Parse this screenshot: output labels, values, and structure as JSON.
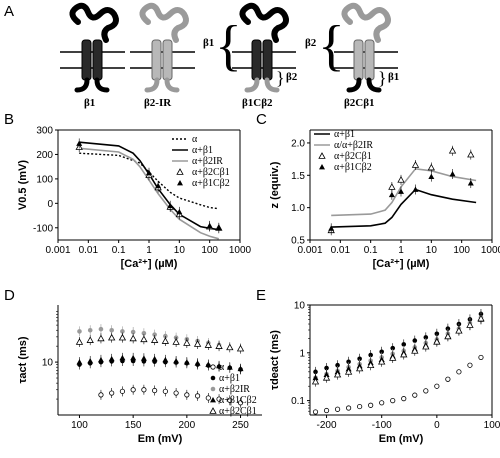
{
  "panel_labels": {
    "a": "A",
    "b": "B",
    "c": "C",
    "d": "D",
    "e": "E"
  },
  "schematic": {
    "labels": [
      "β1",
      "β2-IR",
      "β1Cβ2",
      "β2Cβ1"
    ],
    "brace_left_1": "β1",
    "brace_right_1": "β2",
    "brace_left_2": "β2",
    "brace_right_2": "β1"
  },
  "colors": {
    "black": "#000000",
    "gray": "#9a9a9a",
    "dark_subunit": "#2a2a2a",
    "light_subunit": "#b8b8b8"
  },
  "chart_data": [
    {
      "panel": "B",
      "type": "line",
      "xlabel": "[Ca²⁺] (µM)",
      "ylabel": "V0.5 (mV)",
      "xscale": "log",
      "xlim": [
        0.001,
        1000
      ],
      "ylim": [
        -150,
        300
      ],
      "xticks": [
        "0.001",
        "0.01",
        "0.1",
        "1",
        "10",
        "100",
        "1000"
      ],
      "yticks": [
        "300",
        "200",
        "100",
        "0",
        "-100"
      ],
      "legend": [
        "α",
        "α+β1",
        "α+β2IR",
        "α+β2Cβ1",
        "α+β1Cβ2"
      ],
      "legend_position": "top-right",
      "series": [
        {
          "name": "α",
          "style": "dotted",
          "x": [
            0.005,
            0.1,
            0.5,
            1,
            2,
            5,
            10,
            50,
            100,
            200
          ],
          "y": [
            205,
            196,
            165,
            128,
            90,
            45,
            22,
            -6,
            -17,
            -22
          ]
        },
        {
          "name": "α+β1",
          "style": "solid-black",
          "x": [
            0.005,
            0.1,
            0.3,
            0.5,
            1,
            2,
            5,
            10,
            50,
            100,
            200
          ],
          "y": [
            250,
            235,
            205,
            175,
            120,
            60,
            -5,
            -45,
            -95,
            -102,
            -108
          ]
        },
        {
          "name": "α+β2IR",
          "style": "solid-gray",
          "x": [
            0.005,
            0.1,
            0.3,
            0.5,
            1,
            2,
            5,
            10,
            50,
            100,
            200
          ],
          "y": [
            225,
            210,
            180,
            150,
            95,
            40,
            -25,
            -65,
            -120,
            -135,
            -145
          ]
        },
        {
          "name": "α+β2Cβ1",
          "style": "open-triangle",
          "x": [
            0.005,
            1,
            2,
            5,
            10,
            100,
            200
          ],
          "y": [
            230,
            115,
            65,
            -15,
            -45,
            -95,
            -100
          ]
        },
        {
          "name": "α+β1Cβ2",
          "style": "filled-triangle",
          "x": [
            0.005,
            1,
            2,
            5,
            10,
            100,
            200
          ],
          "y": [
            245,
            125,
            72,
            -10,
            -35,
            -92,
            -102
          ]
        }
      ]
    },
    {
      "panel": "C",
      "type": "line",
      "xlabel": "[Ca²⁺] (µM)",
      "ylabel": "z (equiv.)",
      "xscale": "log",
      "xlim": [
        0.001,
        1000
      ],
      "ylim": [
        0.5,
        2.2
      ],
      "xticks": [
        "0.001",
        "0.01",
        "0.1",
        "1",
        "10",
        "100",
        "1000"
      ],
      "yticks": [
        "0.5",
        "1.0",
        "1.5",
        "2.0"
      ],
      "legend": [
        "α+β1",
        "α/α+β2IR",
        "α+β2Cβ1",
        "α+β1Cβ2"
      ],
      "legend_position": "top-left",
      "series": [
        {
          "name": "α+β1",
          "style": "solid-black",
          "x": [
            0.005,
            0.1,
            0.3,
            0.5,
            1,
            3,
            10,
            50,
            300
          ],
          "y": [
            0.7,
            0.72,
            0.76,
            0.85,
            1.05,
            1.28,
            1.2,
            1.13,
            1.08
          ]
        },
        {
          "name": "α/α+β2IR",
          "style": "solid-gray",
          "x": [
            0.005,
            0.1,
            0.3,
            0.5,
            1,
            3,
            10,
            50,
            300
          ],
          "y": [
            0.88,
            0.9,
            0.96,
            1.08,
            1.32,
            1.6,
            1.57,
            1.48,
            1.42
          ]
        },
        {
          "name": "α+β2Cβ1",
          "style": "open-triangle",
          "x": [
            0.005,
            0.5,
            1,
            3,
            10,
            50,
            200
          ],
          "y": [
            0.65,
            1.32,
            1.43,
            1.66,
            1.62,
            1.88,
            1.82
          ]
        },
        {
          "name": "α+β1Cβ2",
          "style": "filled-triangle",
          "x": [
            0.005,
            0.5,
            1,
            3,
            10,
            50,
            200
          ],
          "y": [
            0.68,
            1.2,
            1.25,
            1.28,
            1.48,
            1.52,
            1.38
          ]
        }
      ]
    },
    {
      "panel": "D",
      "type": "scatter",
      "xlabel": "Em (mV)",
      "ylabel": "τact (ms)",
      "yscale": "log",
      "xlim": [
        80,
        270
      ],
      "ylim": [
        1,
        120
      ],
      "xticks": [
        "100",
        "150",
        "200",
        "250"
      ],
      "yticks": [
        "10"
      ],
      "legend": [
        "α",
        "α+β1",
        "α+β2IR",
        "α+β1Cβ2",
        "α+β2Cβ1"
      ],
      "legend_position": "bottom-right",
      "series": [
        {
          "name": "α",
          "marker": "open-circle",
          "x": [
            120,
            130,
            140,
            150,
            160,
            170,
            180,
            190,
            200,
            210,
            220,
            230,
            240,
            250
          ],
          "y": [
            2.4,
            2.6,
            2.8,
            3.0,
            3.0,
            2.9,
            2.8,
            2.6,
            2.4,
            2.3,
            2.1,
            2.0,
            1.9,
            1.7
          ]
        },
        {
          "name": "α+β1",
          "marker": "filled-circle",
          "x": [
            100,
            110,
            120,
            130,
            140,
            150,
            160,
            170,
            180,
            190,
            200,
            210,
            220,
            230,
            240,
            250
          ],
          "y": [
            9,
            9.5,
            10,
            10.3,
            10.5,
            10.5,
            10.3,
            10.2,
            10,
            9.8,
            9.5,
            9,
            8.6,
            8.2,
            7.8,
            7.3
          ]
        },
        {
          "name": "α+β2IR",
          "marker": "gray-filled-circle",
          "x": [
            100,
            110,
            120,
            130,
            140,
            150,
            160,
            170,
            180,
            190,
            200,
            210,
            220,
            230
          ],
          "y": [
            38,
            40,
            42,
            40,
            38,
            37,
            35,
            33,
            31,
            29,
            27,
            25,
            23,
            21
          ]
        },
        {
          "name": "α+β1Cβ2",
          "marker": "filled-triangle",
          "x": [
            100,
            110,
            120,
            130,
            140,
            150,
            160,
            170,
            180,
            190,
            200,
            210,
            220,
            230,
            240,
            250
          ],
          "y": [
            10,
            10.5,
            11,
            11.5,
            12,
            12,
            11.8,
            11.5,
            11,
            10.5,
            10,
            9.5,
            9,
            8.5,
            8,
            7.5
          ]
        },
        {
          "name": "α+β2Cβ1",
          "marker": "open-triangle",
          "x": [
            100,
            110,
            120,
            130,
            140,
            150,
            160,
            170,
            180,
            190,
            200,
            210,
            220,
            230,
            240,
            250
          ],
          "y": [
            24,
            26,
            28,
            29,
            29,
            28,
            27,
            26,
            25,
            24,
            23,
            22,
            21,
            20,
            19,
            18
          ]
        }
      ]
    },
    {
      "panel": "E",
      "type": "scatter",
      "xlabel": "Em (mV)",
      "ylabel": "τdeact (ms)",
      "yscale": "log",
      "xlim": [
        -230,
        100
      ],
      "ylim": [
        0.05,
        10
      ],
      "xticks": [
        "-200",
        "-100",
        "0",
        "100"
      ],
      "yticks": [
        "10",
        "1",
        "0.1"
      ],
      "series": [
        {
          "name": "α",
          "marker": "open-circle",
          "x": [
            -220,
            -200,
            -180,
            -160,
            -140,
            -120,
            -100,
            -80,
            -60,
            -40,
            -20,
            0,
            20,
            40,
            60,
            80
          ],
          "y": [
            0.058,
            0.062,
            0.066,
            0.07,
            0.075,
            0.08,
            0.09,
            0.1,
            0.11,
            0.13,
            0.16,
            0.2,
            0.28,
            0.4,
            0.55,
            0.8
          ]
        },
        {
          "name": "α+β1",
          "marker": "filled-circle",
          "x": [
            -220,
            -200,
            -180,
            -160,
            -140,
            -120,
            -100,
            -80,
            -60,
            -40,
            -20,
            0,
            20,
            40,
            60,
            80
          ],
          "y": [
            0.4,
            0.48,
            0.55,
            0.65,
            0.75,
            0.9,
            1.05,
            1.25,
            1.5,
            1.8,
            2.1,
            2.5,
            3.2,
            4,
            5,
            6.5
          ]
        },
        {
          "name": "α+β2IR",
          "marker": "gray-filled-circle",
          "x": [
            -220,
            -200,
            -180,
            -160,
            -140,
            -120,
            -100,
            -80,
            -60,
            -40,
            -20,
            0,
            20,
            40,
            60,
            80
          ],
          "y": [
            0.3,
            0.36,
            0.42,
            0.5,
            0.58,
            0.68,
            0.8,
            0.95,
            1.1,
            1.3,
            1.6,
            1.9,
            2.5,
            3.2,
            4.2,
            5.5
          ]
        },
        {
          "name": "α+β1Cβ2",
          "marker": "filled-triangle",
          "x": [
            -220,
            -200,
            -180,
            -160,
            -140,
            -120,
            -100,
            -80,
            -60,
            -40,
            -20,
            0,
            20,
            40,
            60,
            80
          ],
          "y": [
            0.3,
            0.35,
            0.4,
            0.46,
            0.53,
            0.62,
            0.72,
            0.85,
            1.0,
            1.2,
            1.45,
            1.8,
            2.3,
            3,
            3.8,
            5
          ]
        },
        {
          "name": "α+β2Cβ1",
          "marker": "open-triangle",
          "x": [
            -220,
            -200,
            -180,
            -160,
            -140,
            -120,
            -100,
            -80,
            -60,
            -40,
            -20,
            0,
            20,
            40,
            60,
            80
          ],
          "y": [
            0.25,
            0.3,
            0.35,
            0.4,
            0.47,
            0.55,
            0.65,
            0.78,
            0.92,
            1.1,
            1.35,
            1.7,
            2.2,
            2.9,
            3.8,
            5.2
          ]
        }
      ]
    }
  ]
}
